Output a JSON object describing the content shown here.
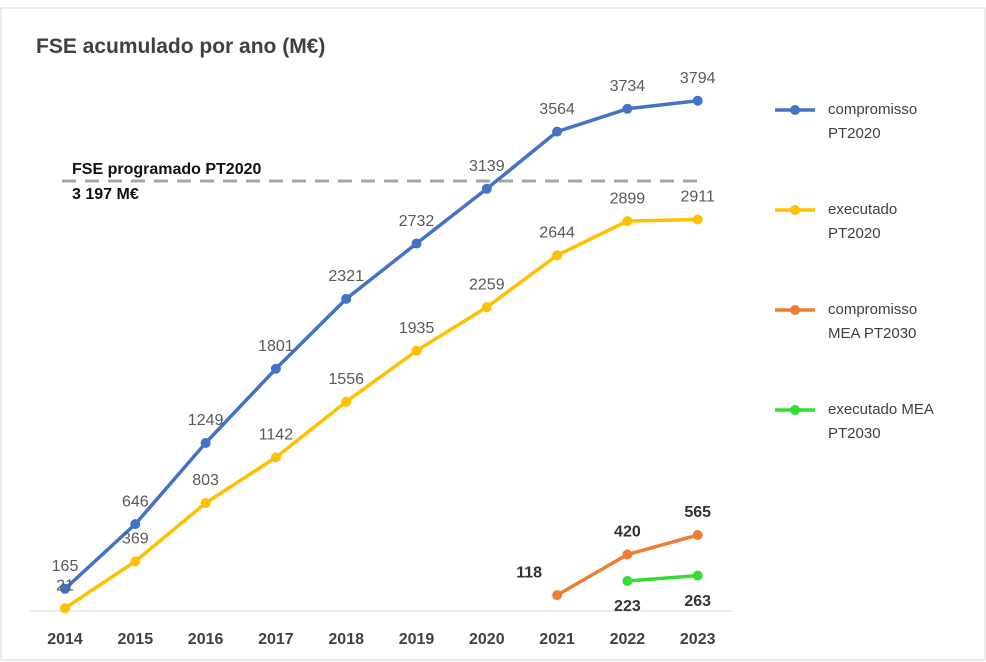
{
  "chart_data": {
    "type": "line",
    "title": "FSE acumulado por ano (M€)",
    "categories": [
      "2014",
      "2015",
      "2016",
      "2017",
      "2018",
      "2019",
      "2020",
      "2021",
      "2022",
      "2023"
    ],
    "series": [
      {
        "name": "compromisso PT2020",
        "color": "#4472c4",
        "label_position": "above",
        "values": [
          165,
          646,
          1249,
          1801,
          2321,
          2732,
          3139,
          3564,
          3734,
          3794
        ]
      },
      {
        "name": "executado PT2020",
        "color": "#ffc000",
        "label_position": "above",
        "values": [
          21,
          369,
          803,
          1142,
          1556,
          1935,
          2259,
          2644,
          2899,
          2911
        ]
      },
      {
        "name": "compromisso MEA PT2030",
        "color": "#ed7d31",
        "label_position": "above",
        "values": [
          null,
          null,
          null,
          null,
          null,
          null,
          null,
          118,
          420,
          565
        ]
      },
      {
        "name": "executado MEA PT2030",
        "color": "#33dd33",
        "label_position": "below",
        "values": [
          null,
          null,
          null,
          null,
          null,
          null,
          null,
          null,
          223,
          263
        ]
      }
    ],
    "reference_line": {
      "value": 3197,
      "label": "FSE programado PT2020",
      "sublabel": "3 197 M€",
      "color": "#a6a6a6"
    },
    "ylim": [
      0,
      4000
    ],
    "legend": "right"
  }
}
